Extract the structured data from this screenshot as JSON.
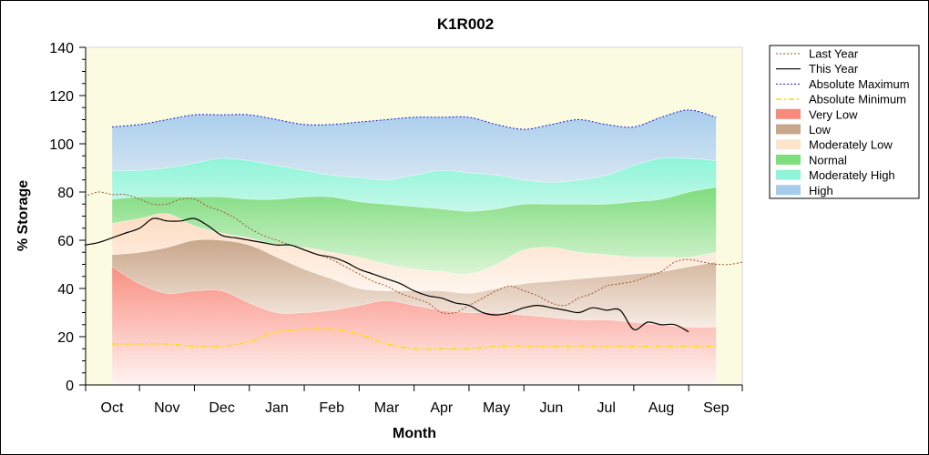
{
  "chart_data": {
    "type": "area",
    "title": "K1R002",
    "xlabel": "Month",
    "ylabel": "% Storage",
    "ylim": [
      0,
      140
    ],
    "yticks": [
      0,
      20,
      40,
      60,
      80,
      100,
      120,
      140
    ],
    "categories": [
      "Oct",
      "Nov",
      "Dec",
      "Jan",
      "Feb",
      "Mar",
      "Apr",
      "May",
      "Jun",
      "Jul",
      "Aug",
      "Sep"
    ],
    "legend_position": "right",
    "grid": false,
    "bands": {
      "x": [
        0,
        0.5,
        1,
        1.5,
        2,
        2.5,
        3,
        3.5,
        4,
        4.5,
        5,
        5.5,
        6,
        6.5,
        7,
        7.5,
        8,
        8.5,
        9,
        9.5,
        10,
        10.5,
        11
      ],
      "boundaries": [
        [
          0,
          0,
          0,
          0,
          0,
          0,
          0,
          0,
          0,
          0,
          0,
          0,
          0,
          0,
          0,
          0,
          0,
          0,
          0,
          0,
          0,
          0,
          0
        ],
        [
          49,
          42,
          38,
          39,
          39,
          34,
          30,
          30,
          31,
          33,
          35,
          33,
          31,
          30,
          30,
          29,
          28,
          27,
          27,
          26,
          25,
          24,
          24
        ],
        [
          54,
          55,
          57,
          60,
          60,
          58,
          53,
          48,
          44,
          40,
          39,
          39,
          39,
          38,
          40,
          42,
          43,
          44,
          45,
          46,
          47,
          49,
          51
        ],
        [
          67,
          69,
          71,
          66,
          63,
          61,
          58,
          57,
          55,
          53,
          50,
          48,
          47,
          46,
          50,
          56,
          57,
          55,
          54,
          53,
          53,
          53,
          55
        ],
        [
          77,
          78,
          78,
          78,
          78,
          77,
          77,
          78,
          78,
          76,
          75,
          74,
          73,
          72,
          73,
          75,
          75,
          75,
          75,
          76,
          77,
          80,
          82
        ],
        [
          89,
          89,
          90,
          92,
          94,
          93,
          91,
          89,
          87,
          86,
          85,
          87,
          89,
          88,
          87,
          85,
          84,
          85,
          87,
          91,
          94,
          94,
          93
        ],
        [
          107,
          108,
          110,
          112,
          112,
          112,
          110,
          108,
          108,
          109,
          110,
          111,
          111,
          111,
          108,
          106,
          108,
          110,
          108,
          107,
          111,
          114,
          111
        ]
      ]
    },
    "series": [
      {
        "name": "Last Year",
        "x": [
          -0.5,
          -0.25,
          0,
          0.25,
          0.5,
          0.75,
          1,
          1.25,
          1.5,
          1.75,
          2,
          2.25,
          2.5,
          2.75,
          3,
          3.25,
          3.5,
          3.75,
          4,
          4.25,
          4.5,
          4.75,
          5,
          5.25,
          5.5,
          5.75,
          6,
          6.25,
          6.5,
          6.75,
          7,
          7.25,
          7.5,
          7.75,
          8,
          8.25,
          8.5,
          8.75,
          9,
          9.25,
          9.5,
          9.75,
          10,
          10.25,
          10.5,
          10.75,
          11,
          11.25,
          11.5
        ],
        "values": [
          78,
          80,
          79,
          79,
          77,
          75,
          75,
          77,
          77,
          74,
          72,
          69,
          65,
          62,
          60,
          58,
          56,
          54,
          52,
          49,
          46,
          43,
          41,
          38,
          36,
          34,
          30,
          30,
          33,
          36,
          39,
          41,
          39,
          37,
          34,
          33,
          36,
          38,
          41,
          42,
          43,
          45,
          47,
          51,
          52,
          51,
          50,
          50,
          51
        ],
        "color": "#a0522d",
        "style": "dotted"
      },
      {
        "name": "This Year",
        "x": [
          -0.5,
          -0.25,
          0,
          0.25,
          0.5,
          0.75,
          1,
          1.25,
          1.5,
          1.75,
          2,
          2.25,
          2.5,
          2.75,
          3,
          3.25,
          3.5,
          3.75,
          4,
          4.25,
          4.5,
          4.75,
          5,
          5.25,
          5.5,
          5.75,
          6,
          6.25,
          6.5,
          6.75,
          7,
          7.25,
          7.5,
          7.75,
          8,
          8.25,
          8.5,
          8.75,
          9,
          9.25,
          9.5,
          9.75,
          10,
          10.25,
          10.5
        ],
        "values": [
          58,
          59,
          61,
          63,
          65,
          69,
          68,
          68,
          69,
          66,
          62,
          61,
          60,
          59,
          58,
          58,
          56,
          54,
          53,
          51,
          48,
          46,
          44,
          42,
          39,
          37,
          36,
          34,
          33,
          30,
          29,
          30,
          32,
          33,
          32,
          31,
          30,
          32,
          31,
          31,
          23,
          26,
          25,
          25,
          22
        ],
        "color": "#000000",
        "style": "solid"
      },
      {
        "name": "Absolute Maximum",
        "x": [
          0,
          0.5,
          1,
          1.5,
          2,
          2.5,
          3,
          3.5,
          4,
          4.5,
          5,
          5.5,
          6,
          6.5,
          7,
          7.5,
          8,
          8.5,
          9,
          9.5,
          10,
          10.5,
          11
        ],
        "values": [
          107,
          108,
          110,
          112,
          112,
          112,
          110,
          108,
          108,
          109,
          110,
          111,
          111,
          111,
          108,
          106,
          108,
          110,
          108,
          107,
          111,
          114,
          111
        ],
        "color": "#1a1acc",
        "style": "dotted"
      },
      {
        "name": "Absolute Minimum",
        "x": [
          0,
          0.5,
          1,
          1.5,
          2,
          2.5,
          3,
          3.5,
          4,
          4.5,
          5,
          5.5,
          6,
          6.5,
          7,
          7.5,
          8,
          8.5,
          9,
          9.5,
          10,
          10.5,
          11
        ],
        "values": [
          17,
          17,
          17,
          16,
          16,
          18,
          22,
          23,
          23,
          21,
          17,
          15,
          15,
          15,
          16,
          16,
          16,
          16,
          16,
          16,
          16,
          16,
          16
        ],
        "color": "#ffe000",
        "style": "dashdot"
      }
    ],
    "band_legend": [
      {
        "name": "Very Low",
        "color": "#f78a7a"
      },
      {
        "name": "Low",
        "color": "#c8a88c"
      },
      {
        "name": "Moderately Low",
        "color": "#fde4cc"
      },
      {
        "name": "Normal",
        "color": "#7ede7e"
      },
      {
        "name": "Moderately High",
        "color": "#8ff5d8"
      },
      {
        "name": "High",
        "color": "#a8cdec"
      }
    ]
  }
}
